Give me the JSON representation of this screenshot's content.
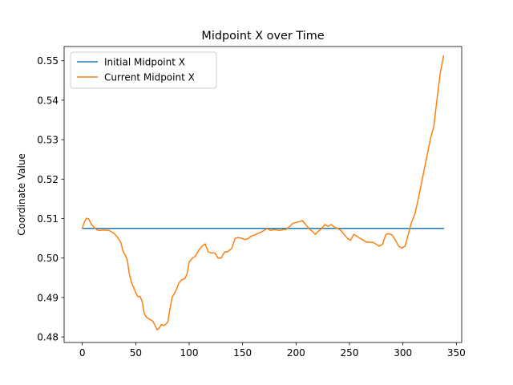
{
  "chart_data": {
    "type": "line",
    "title": "Midpoint X over Time",
    "xlabel": "",
    "ylabel": "Coordinate Value",
    "xlim": [
      -17,
      355
    ],
    "ylim": [
      0.4786,
      0.5536
    ],
    "xticks": [
      0,
      50,
      100,
      150,
      200,
      250,
      300,
      350
    ],
    "yticks": [
      0.48,
      0.49,
      0.5,
      0.51,
      0.52,
      0.53,
      0.54,
      0.55
    ],
    "xtick_labels": [
      "0",
      "50",
      "100",
      "150",
      "200",
      "250",
      "300",
      "350"
    ],
    "ytick_labels": [
      "0.48",
      "0.49",
      "0.50",
      "0.51",
      "0.52",
      "0.53",
      "0.54",
      "0.55"
    ],
    "grid": false,
    "legend_position": "top-left",
    "series": [
      {
        "name": "Initial Midpoint X",
        "color": "#1f77b4",
        "x": [
          0,
          338
        ],
        "y": [
          0.5075,
          0.5075
        ]
      },
      {
        "name": "Current Midpoint X",
        "color": "#ff7f0e",
        "x": [
          0,
          2,
          4,
          6,
          8,
          10,
          12,
          14,
          16,
          20,
          25,
          30,
          33,
          36,
          38,
          40,
          42,
          44,
          46,
          48,
          50,
          52,
          54,
          56,
          58,
          60,
          63,
          66,
          68,
          70,
          72,
          74,
          76,
          78,
          80,
          82,
          84,
          86,
          88,
          90,
          93,
          96,
          98,
          100,
          103,
          106,
          109,
          112,
          115,
          118,
          121,
          124,
          127,
          130,
          133,
          136,
          140,
          143,
          146,
          149,
          152,
          155,
          158,
          161,
          164,
          167,
          170,
          173,
          176,
          179,
          182,
          185,
          188,
          191,
          194,
          197,
          200,
          203,
          206,
          209,
          212,
          215,
          218,
          221,
          224,
          227,
          230,
          233,
          236,
          239,
          242,
          245,
          248,
          251,
          254,
          257,
          260,
          263,
          266,
          269,
          272,
          275,
          278,
          281,
          284,
          287,
          290,
          293,
          296,
          299,
          302,
          305,
          308,
          311,
          314,
          317,
          320,
          323,
          326,
          329,
          332,
          335,
          338
        ],
        "y": [
          0.5075,
          0.5092,
          0.5101,
          0.5099,
          0.5088,
          0.5081,
          0.5075,
          0.5071,
          0.507,
          0.5071,
          0.507,
          0.5062,
          0.5052,
          0.504,
          0.5018,
          0.5008,
          0.4996,
          0.496,
          0.4938,
          0.4926,
          0.4912,
          0.4902,
          0.4903,
          0.489,
          0.486,
          0.485,
          0.4845,
          0.484,
          0.483,
          0.4818,
          0.4822,
          0.4832,
          0.4829,
          0.4832,
          0.4838,
          0.487,
          0.49,
          0.491,
          0.492,
          0.4935,
          0.4945,
          0.4948,
          0.496,
          0.499,
          0.5,
          0.5005,
          0.502,
          0.503,
          0.5036,
          0.5015,
          0.5013,
          0.5013,
          0.5,
          0.5,
          0.5015,
          0.5016,
          0.5025,
          0.505,
          0.5052,
          0.505,
          0.5047,
          0.5049,
          0.5055,
          0.5058,
          0.5062,
          0.5065,
          0.507,
          0.5075,
          0.507,
          0.5072,
          0.5071,
          0.507,
          0.5072,
          0.5073,
          0.508,
          0.5088,
          0.509,
          0.5092,
          0.5095,
          0.5085,
          0.5075,
          0.5068,
          0.506,
          0.5068,
          0.5075,
          0.5085,
          0.508,
          0.5085,
          0.5078,
          0.5075,
          0.507,
          0.506,
          0.505,
          0.5045,
          0.506,
          0.5055,
          0.505,
          0.5045,
          0.504,
          0.504,
          0.504,
          0.5035,
          0.503,
          0.5035,
          0.506,
          0.5062,
          0.5058,
          0.5045,
          0.503,
          0.5025,
          0.503,
          0.506,
          0.509,
          0.511,
          0.5145,
          0.5185,
          0.5225,
          0.5265,
          0.5305,
          0.5335,
          0.5405,
          0.547,
          0.5512
        ]
      }
    ]
  }
}
